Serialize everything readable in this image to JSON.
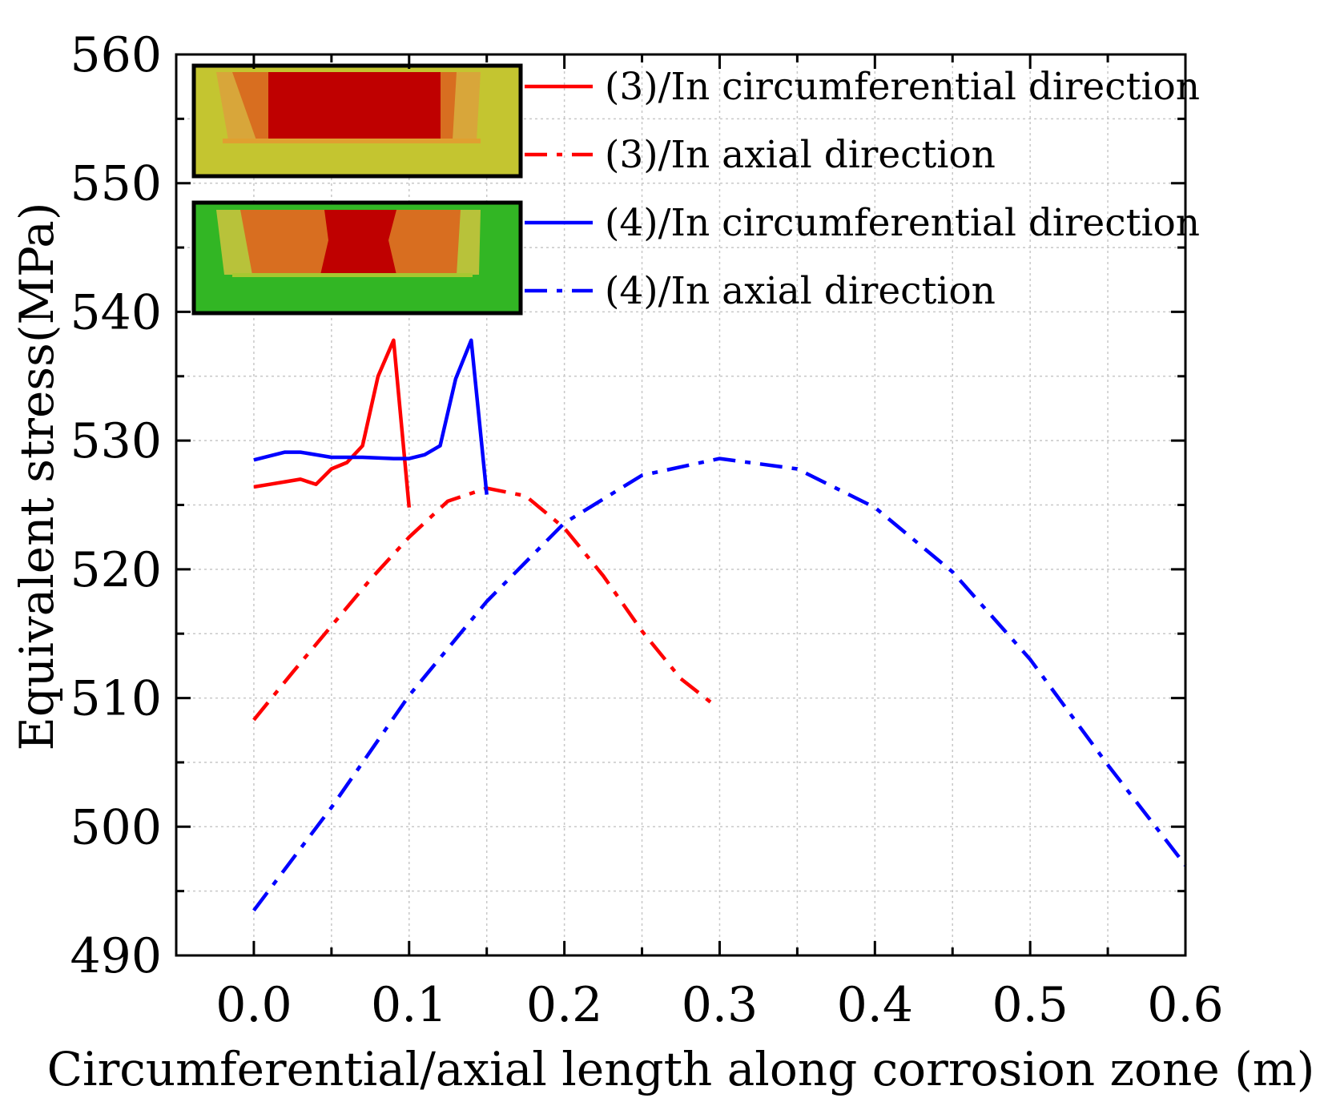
{
  "chart_data": {
    "type": "line",
    "title": "",
    "xlabel": "Circumferential/axial length along corrosion zone (m)",
    "ylabel": "Equivalent stress(MPa)",
    "xlim": [
      -0.05,
      0.6
    ],
    "ylim": [
      490,
      560
    ],
    "xticks": [
      "0.0",
      "0.1",
      "0.2",
      "0.3",
      "0.4",
      "0.5",
      "0.6"
    ],
    "yticks": [
      "490",
      "500",
      "510",
      "520",
      "530",
      "540",
      "550",
      "560"
    ],
    "grid": true,
    "legend_position": "top-right",
    "series": [
      {
        "name": "(3)/In circumferential direction",
        "color": "#ff0000",
        "dash": "solid",
        "x": [
          0.0,
          0.01,
          0.02,
          0.03,
          0.04,
          0.05,
          0.06,
          0.07,
          0.08,
          0.09,
          0.1
        ],
        "y": [
          526.4,
          526.6,
          526.8,
          527.0,
          526.6,
          527.8,
          528.3,
          529.6,
          535.0,
          537.8,
          524.8
        ]
      },
      {
        "name": "(3)/In axial direction",
        "color": "#ff0000",
        "dash": "dashdot",
        "x": [
          0.0,
          0.025,
          0.05,
          0.075,
          0.1,
          0.125,
          0.15,
          0.175,
          0.2,
          0.225,
          0.25,
          0.275,
          0.295
        ],
        "y": [
          508.3,
          512.0,
          515.6,
          519.2,
          522.5,
          525.3,
          526.3,
          525.7,
          523.2,
          519.5,
          515.2,
          511.5,
          509.6
        ]
      },
      {
        "name": "(4)/In circumferential direction",
        "color": "#0000ff",
        "dash": "solid",
        "x": [
          0.0,
          0.02,
          0.03,
          0.05,
          0.07,
          0.09,
          0.1,
          0.11,
          0.12,
          0.13,
          0.14,
          0.15
        ],
        "y": [
          528.5,
          529.1,
          529.1,
          528.7,
          528.7,
          528.6,
          528.6,
          528.9,
          529.6,
          534.8,
          537.8,
          525.8
        ]
      },
      {
        "name": "(4)/In axial direction",
        "color": "#0000ff",
        "dash": "dashdot",
        "x": [
          0.0,
          0.05,
          0.1,
          0.15,
          0.2,
          0.25,
          0.3,
          0.35,
          0.4,
          0.45,
          0.5,
          0.55,
          0.6
        ],
        "y": [
          493.5,
          501.5,
          510.2,
          517.5,
          523.6,
          527.3,
          528.6,
          527.8,
          524.8,
          519.8,
          513.0,
          504.8,
          497.0
        ]
      }
    ]
  },
  "insets": [
    {
      "name": "contour-inset-3",
      "colors": {
        "background": "#c4c530",
        "core": "#bf0000",
        "ring": "#d86e20",
        "edge": "#d8a63a"
      }
    },
    {
      "name": "contour-inset-4",
      "colors": {
        "background": "#32b624",
        "core": "#bf0000",
        "ring": "#d86e20",
        "edge": "#d8a63a"
      }
    }
  ]
}
